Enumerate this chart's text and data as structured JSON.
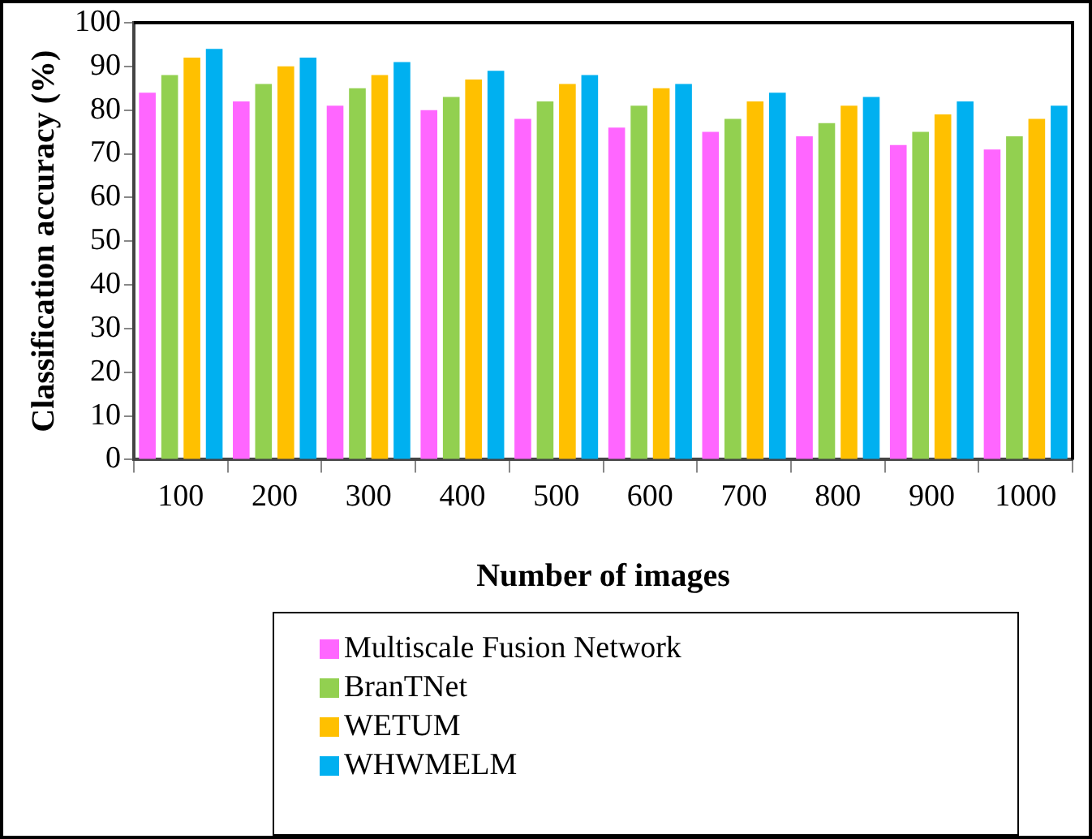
{
  "chart_data": {
    "type": "bar",
    "xlabel": "Number of images",
    "ylabel": "Classification accuracy (%)",
    "categories": [
      "100",
      "200",
      "300",
      "400",
      "500",
      "600",
      "700",
      "800",
      "900",
      "1000"
    ],
    "series": [
      {
        "name": "Multiscale Fusion Network",
        "color": "#ff66ff",
        "values": [
          84,
          82,
          81,
          80,
          78,
          76,
          75,
          74,
          72,
          71
        ]
      },
      {
        "name": "BranTNet",
        "color": "#92d050",
        "values": [
          88,
          86,
          85,
          83,
          82,
          81,
          78,
          77,
          75,
          74
        ]
      },
      {
        "name": "WETUM",
        "color": "#ffc000",
        "values": [
          92,
          90,
          88,
          87,
          86,
          85,
          82,
          81,
          79,
          78
        ]
      },
      {
        "name": "WHWMELM",
        "color": "#00b0f0",
        "values": [
          94,
          92,
          91,
          89,
          88,
          86,
          84,
          83,
          82,
          81
        ]
      }
    ],
    "ylim": [
      0,
      100
    ],
    "yticks": [
      0,
      10,
      20,
      30,
      40,
      50,
      60,
      70,
      80,
      90,
      100
    ],
    "grid": false,
    "legend": "bottom"
  }
}
